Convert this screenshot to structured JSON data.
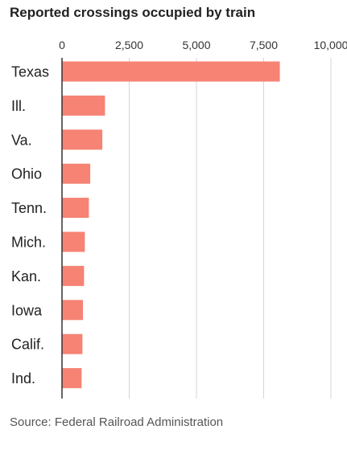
{
  "chart_data": {
    "type": "bar",
    "orientation": "horizontal",
    "title": "Reported crossings occupied by train",
    "categories": [
      "Texas",
      "Ill.",
      "Va.",
      "Ohio",
      "Tenn.",
      "Mich.",
      "Kan.",
      "Iowa",
      "Calif.",
      "Ind."
    ],
    "values": [
      8100,
      1600,
      1500,
      1050,
      1000,
      850,
      820,
      780,
      760,
      730
    ],
    "xlim": [
      0,
      10000
    ],
    "xticks": [
      0,
      2500,
      5000,
      7500,
      10000
    ],
    "xtick_labels": [
      "0",
      "2,500",
      "5,000",
      "7,500",
      "10,000"
    ],
    "grid": true,
    "bar_color": "#f68374",
    "grid_color": "#d4d4d4",
    "axis_color": "#333333",
    "source": "Source: Federal Railroad Administration"
  }
}
